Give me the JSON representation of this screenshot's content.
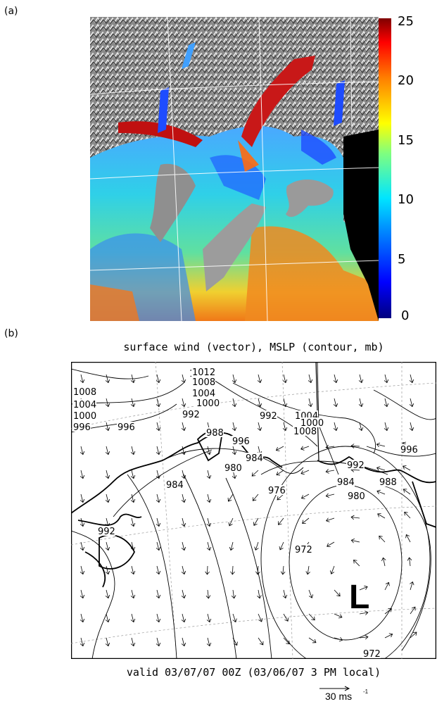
{
  "panel_a": {
    "label": "(a)",
    "colorbar": {
      "ticks": [
        "25",
        "20",
        "15",
        "10",
        "5",
        "0"
      ],
      "colors": [
        "#00007f",
        "#0000ff",
        "#0080ff",
        "#00e5ff",
        "#7fff7f",
        "#ffff00",
        "#ff8000",
        "#ff0000",
        "#7f0000"
      ]
    }
  },
  "panel_b": {
    "label": "(b)",
    "title": "surface wind (vector), MSLP (contour, mb)",
    "valid": "valid 03/07/07 00Z (03/06/07 3 PM local)",
    "low_marker": "L",
    "scale_label": "30 ms",
    "scale_exponent": "-1",
    "contour_labels": [
      "1012",
      "1008",
      "1004",
      "1000",
      "996",
      "1012",
      "1008",
      "1004",
      "1000",
      "996",
      "992",
      "988",
      "996",
      "992",
      "1004",
      "1000",
      "1008",
      "996",
      "984",
      "980",
      "992",
      "984",
      "988",
      "980",
      "976",
      "984",
      "992",
      "972",
      "972"
    ]
  }
}
